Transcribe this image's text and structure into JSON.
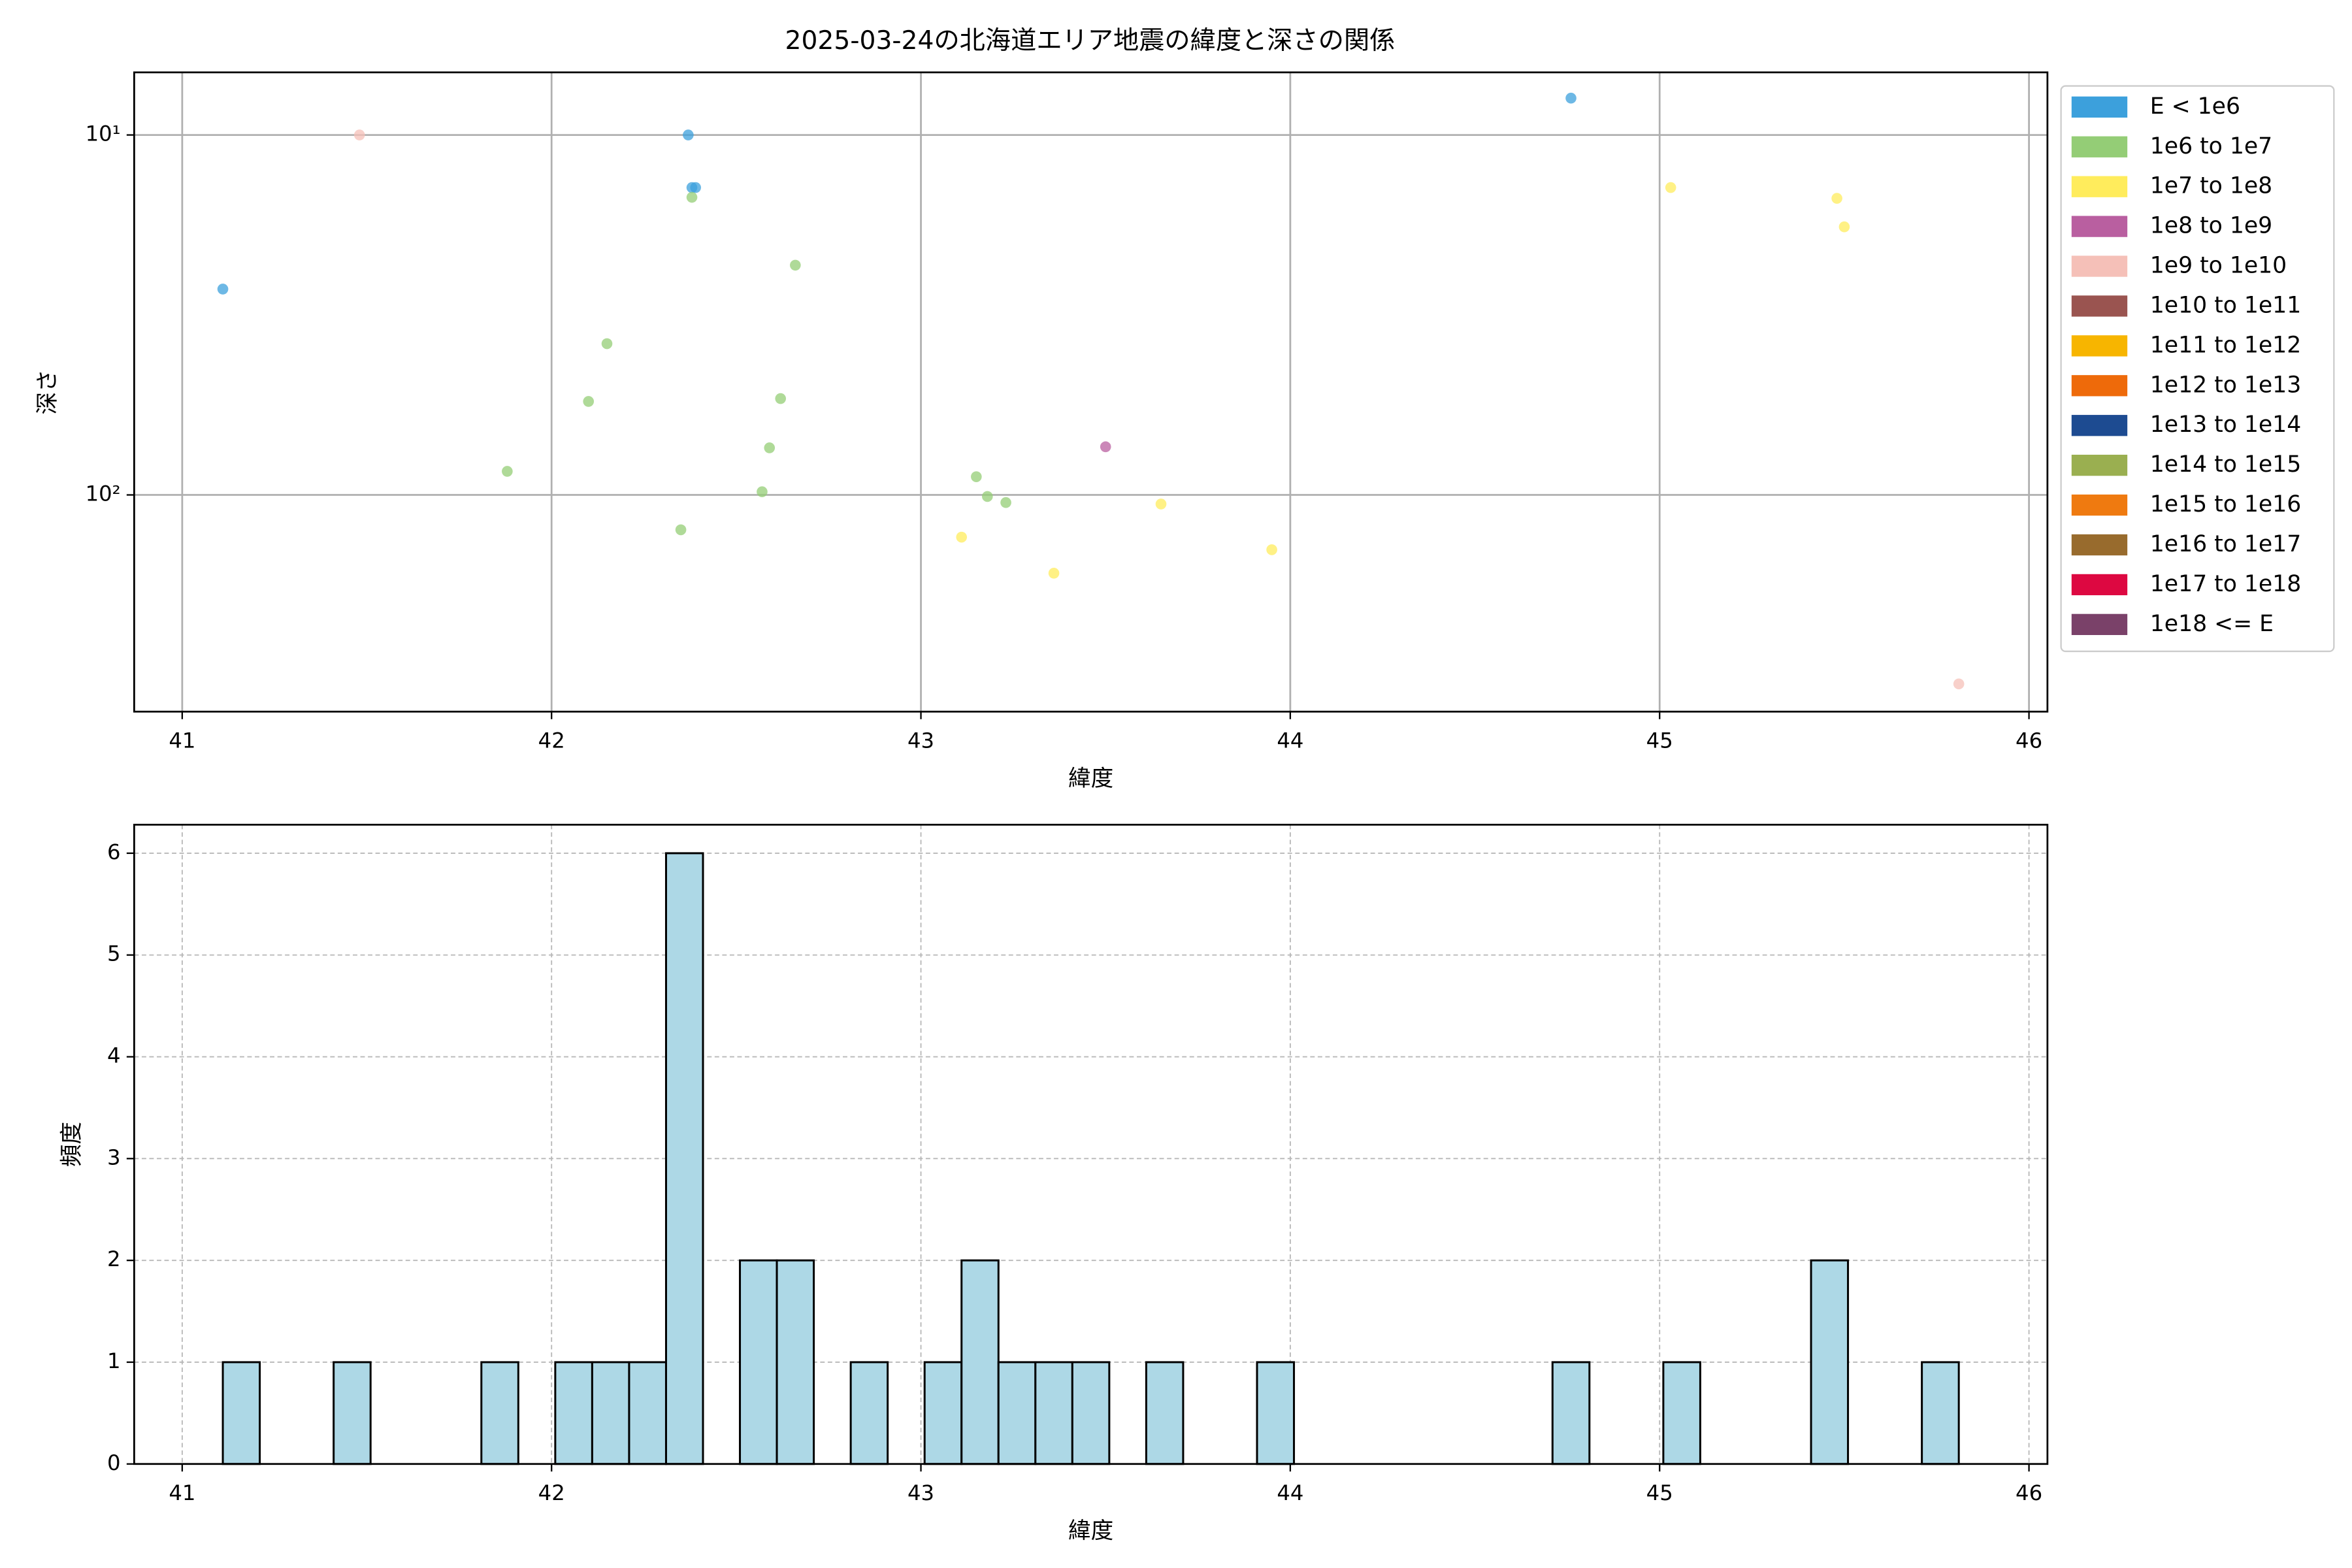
{
  "chart_data": [
    {
      "type": "scatter",
      "title": "2025-03-24の北海道エリア地震の緯度と深さの関係",
      "xlabel": "緯度",
      "ylabel": "深さ",
      "xlim": [
        40.87,
        46.05
      ],
      "xticks": [
        41,
        42,
        43,
        44,
        45,
        46
      ],
      "ylim": [
        400,
        6.7
      ],
      "yscale": "log",
      "yticks": [
        {
          "value": 10,
          "label": "10¹"
        },
        {
          "value": 100,
          "label": "10²"
        }
      ],
      "grid": true,
      "legend": "outside right",
      "series": [
        {
          "name": "E < 1e6",
          "color": "#3ca0dc",
          "x": [
            41.11,
            42.37,
            42.38,
            42.39,
            44.76
          ],
          "y": [
            26.8,
            10,
            14.0,
            14.0,
            7.9
          ]
        },
        {
          "name": "1e6 to 1e7",
          "color": "#94cd76",
          "x": [
            42.38,
            42.66,
            42.15,
            42.1,
            42.62,
            42.59,
            41.88,
            42.57,
            42.35,
            43.15,
            43.18,
            43.23
          ],
          "y": [
            14.9,
            23.0,
            38,
            55,
            54,
            74,
            86,
            98,
            125,
            89,
            101,
            105
          ]
        },
        {
          "name": "1e7 to 1e8",
          "color": "#ffec5c",
          "x": [
            43.11,
            43.36,
            43.65,
            43.95,
            45.03,
            45.48,
            45.5
          ],
          "y": [
            131,
            165,
            106,
            142,
            14.0,
            15.0,
            18.0
          ]
        },
        {
          "name": "1e8 to 1e9",
          "color": "#b95fa0",
          "x": [
            43.5
          ],
          "y": [
            73.5
          ]
        },
        {
          "name": "1e9 to 1e10",
          "color": "#f5c0b8",
          "x": [
            41.48,
            45.81
          ],
          "y": [
            10,
            335
          ]
        },
        {
          "name": "1e10 to 1e11",
          "color": "#9a5450",
          "x": [],
          "y": []
        },
        {
          "name": "1e11 to 1e12",
          "color": "#f7b500",
          "x": [],
          "y": []
        },
        {
          "name": "1e12 to 1e13",
          "color": "#ee6a0a",
          "x": [],
          "y": []
        },
        {
          "name": "1e13 to 1e14",
          "color": "#1d4b91",
          "x": [],
          "y": []
        },
        {
          "name": "1e14 to 1e15",
          "color": "#9aaf50",
          "x": [],
          "y": []
        },
        {
          "name": "1e15 to 1e16",
          "color": "#ef7a10",
          "x": [],
          "y": []
        },
        {
          "name": "1e16 to 1e17",
          "color": "#986b2d",
          "x": [],
          "y": []
        },
        {
          "name": "1e17 to 1e18",
          "color": "#dd0841",
          "x": [],
          "y": []
        },
        {
          "name": "1e18 <= E",
          "color": "#7a4169",
          "x": [],
          "y": []
        }
      ]
    },
    {
      "type": "histogram",
      "xlabel": "緯度",
      "ylabel": "頻度",
      "color": "#add8e6",
      "edgecolor": "#000000",
      "xlim": [
        40.87,
        46.05
      ],
      "xticks": [
        41,
        42,
        43,
        44,
        45,
        46
      ],
      "ylim": [
        0,
        6.28
      ],
      "yticks": [
        0,
        1,
        2,
        3,
        4,
        5,
        6
      ],
      "grid": "dashed",
      "bins": [
        41.11,
        41.21,
        41.31,
        41.41,
        41.51,
        41.61,
        41.71,
        41.81,
        41.91,
        42.01,
        42.11,
        42.21,
        42.31,
        42.41,
        42.51,
        42.61,
        42.71,
        42.81,
        42.91,
        43.01,
        43.11,
        43.21,
        43.31,
        43.41,
        43.51,
        43.61,
        43.71,
        43.81,
        43.91,
        44.01,
        44.11,
        44.21,
        44.31,
        44.41,
        44.51,
        44.61,
        44.71,
        44.81,
        44.91,
        45.01,
        45.11,
        45.21,
        45.31,
        45.41,
        45.51,
        45.61,
        45.71,
        45.81
      ],
      "values": [
        1,
        0,
        0,
        1,
        0,
        0,
        0,
        1,
        0,
        1,
        1,
        1,
        6,
        0,
        2,
        2,
        0,
        1,
        0,
        1,
        2,
        1,
        1,
        1,
        0,
        1,
        0,
        0,
        1,
        0,
        0,
        0,
        0,
        0,
        0,
        0,
        1,
        0,
        0,
        1,
        0,
        0,
        0,
        2,
        0,
        0,
        1
      ]
    }
  ]
}
